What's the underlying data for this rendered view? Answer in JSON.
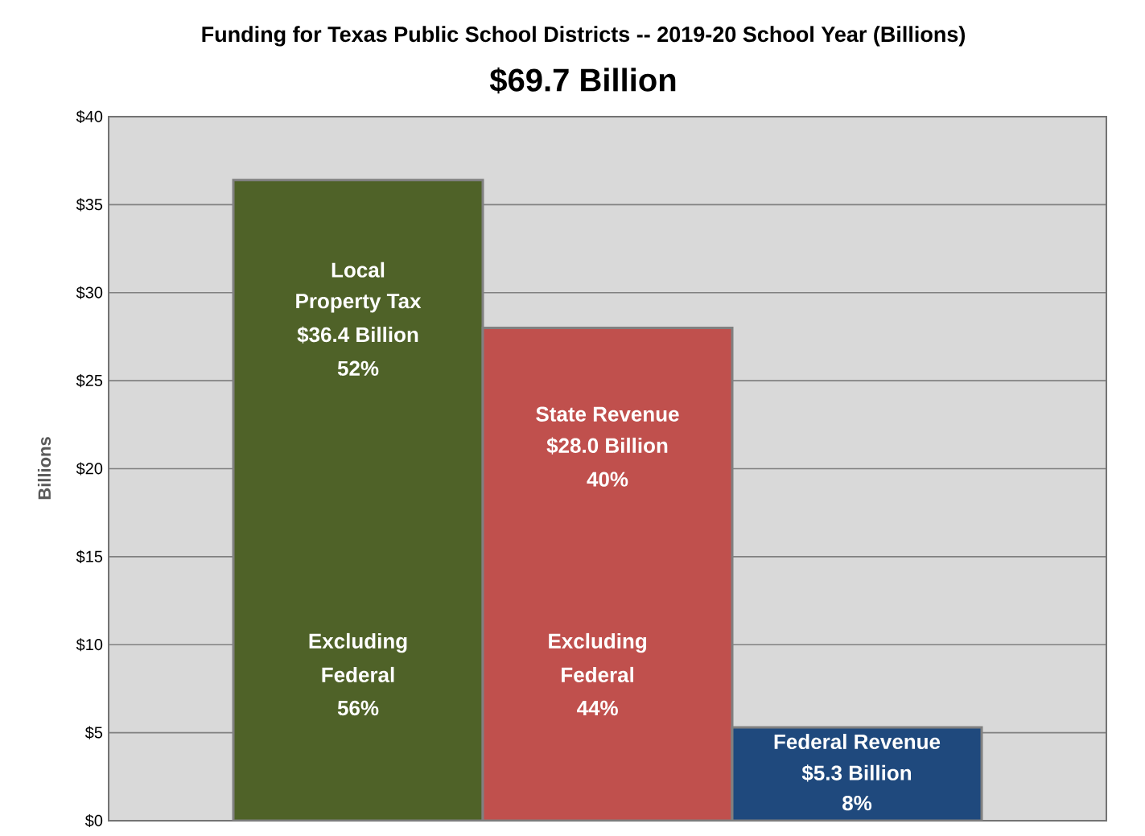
{
  "chart_data": {
    "type": "bar",
    "title": "Funding for Texas Public School Districts -- 2019-20 School Year (Billions)",
    "subtitle": "$69.7 Billion",
    "ylabel": "Billions",
    "categories": [
      null,
      null,
      null
    ],
    "values": [
      36.4,
      28.0,
      5.3
    ],
    "colors": [
      "#4f6228",
      "#c0504d",
      "#1f497d"
    ],
    "ylim": [
      0,
      40
    ],
    "yticks": [
      {
        "value": 0,
        "label": "$0"
      },
      {
        "value": 5,
        "label": "$5"
      },
      {
        "value": 10,
        "label": "$10"
      },
      {
        "value": 15,
        "label": "$15"
      },
      {
        "value": 20,
        "label": "$20"
      },
      {
        "value": 25,
        "label": "$25"
      },
      {
        "value": 30,
        "label": "$30"
      },
      {
        "value": 35,
        "label": "$35"
      },
      {
        "value": 40,
        "label": "$40"
      }
    ],
    "grid": "y",
    "annotations": [
      "Local",
      "Property Tax",
      "$36.4 Billion",
      "52%",
      "Excluding",
      "Federal",
      "56%",
      "State Revenue",
      "$28.0 Billion",
      "40%",
      "Excluding",
      "Federal",
      "44%",
      "Federal Revenue",
      "$5.3 Billion",
      "8%"
    ]
  }
}
